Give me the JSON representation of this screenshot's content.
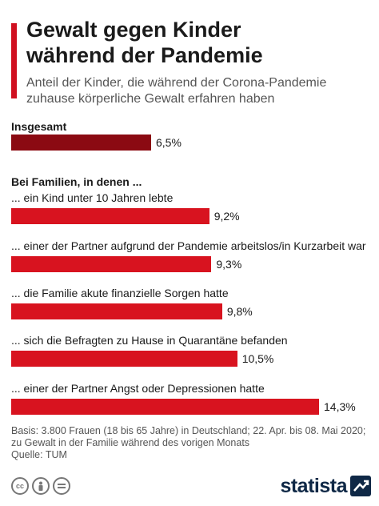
{
  "header": {
    "title_line1": "Gewalt gegen Kinder",
    "title_line2": "während der Pandemie",
    "subtitle_line1": "Anteil der Kinder, die während der Corona-Pandemie",
    "subtitle_line2": "zuhause körperliche Gewalt erfahren haben"
  },
  "colors": {
    "accent": "#d01020",
    "overall_bar": "#8b0a12",
    "bar": "#d8131f"
  },
  "chart_data": {
    "type": "bar",
    "orientation": "horizontal",
    "groups": [
      {
        "label": "Insgesamt",
        "categories": [
          ""
        ],
        "values": [
          6.5
        ],
        "value_labels": [
          "6,5%"
        ]
      },
      {
        "label": "Bei Familien, in denen ...",
        "categories": [
          "... ein Kind unter 10 Jahren lebte",
          "... einer der Partner aufgrund der Pandemie arbeitslos/in Kurzarbeit war",
          "... die Familie akute finanzielle Sorgen hatte",
          "... sich die Befragten zu Hause in Quarantäne befanden",
          "... einer der Partner Angst oder Depressionen hatte"
        ],
        "values": [
          9.2,
          9.3,
          9.8,
          10.5,
          14.3
        ],
        "value_labels": [
          "9,2%",
          "9,3%",
          "9,8%",
          "10,5%",
          "14,3%"
        ]
      }
    ],
    "unit": "%",
    "grid": false,
    "legend": "none"
  },
  "footer": {
    "source_line1": "Basis: 3.800 Frauen (18 bis 65 Jahre) in Deutschland; 22. Apr. bis 08. Mai 2020;",
    "source_line2": "zu Gewalt in der Familie während des vorigen Monats",
    "source_line3": "Quelle: TUM"
  },
  "license_icons": [
    "cc-icon",
    "person-icon",
    "equals-icon"
  ],
  "logo": {
    "text": "statista"
  }
}
